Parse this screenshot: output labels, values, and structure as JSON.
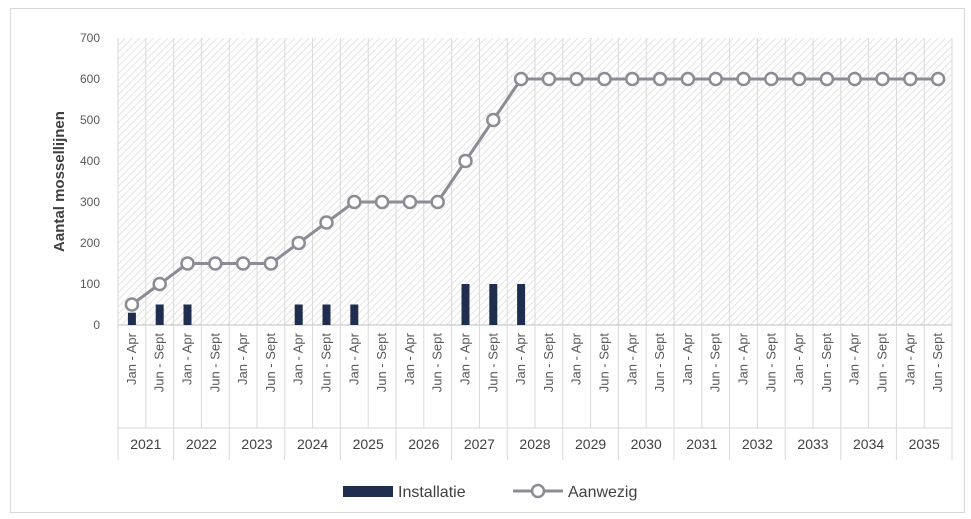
{
  "chart_data": {
    "type": "bar+line",
    "ylabel": "Aantal mossellijnen",
    "ylim": [
      0,
      700
    ],
    "yticks": [
      0,
      100,
      200,
      300,
      400,
      500,
      600,
      700
    ],
    "grid": "hatched plot area with vertical gridlines",
    "legend_position": "bottom",
    "years": [
      "2021",
      "2022",
      "2023",
      "2024",
      "2025",
      "2026",
      "2027",
      "2028",
      "2029",
      "2030",
      "2031",
      "2032",
      "2033",
      "2034",
      "2035"
    ],
    "periods": [
      "Jan - Apr",
      "Jun - Sept"
    ],
    "series": [
      {
        "name": "Installatie",
        "type": "bar",
        "color": "#1f2d4e",
        "values": [
          30,
          50,
          50,
          0,
          0,
          0,
          50,
          50,
          50,
          0,
          0,
          0,
          100,
          100,
          100,
          0,
          0,
          0,
          0,
          0,
          0,
          0,
          0,
          0,
          0,
          0,
          0,
          0,
          0,
          0
        ]
      },
      {
        "name": "Aanwezig",
        "type": "line",
        "color": "#8c8c96",
        "values": [
          50,
          100,
          150,
          150,
          150,
          150,
          200,
          250,
          300,
          300,
          300,
          300,
          400,
          500,
          600,
          600,
          600,
          600,
          600,
          600,
          600,
          600,
          600,
          600,
          600,
          600,
          600,
          600,
          600,
          600
        ]
      }
    ]
  }
}
